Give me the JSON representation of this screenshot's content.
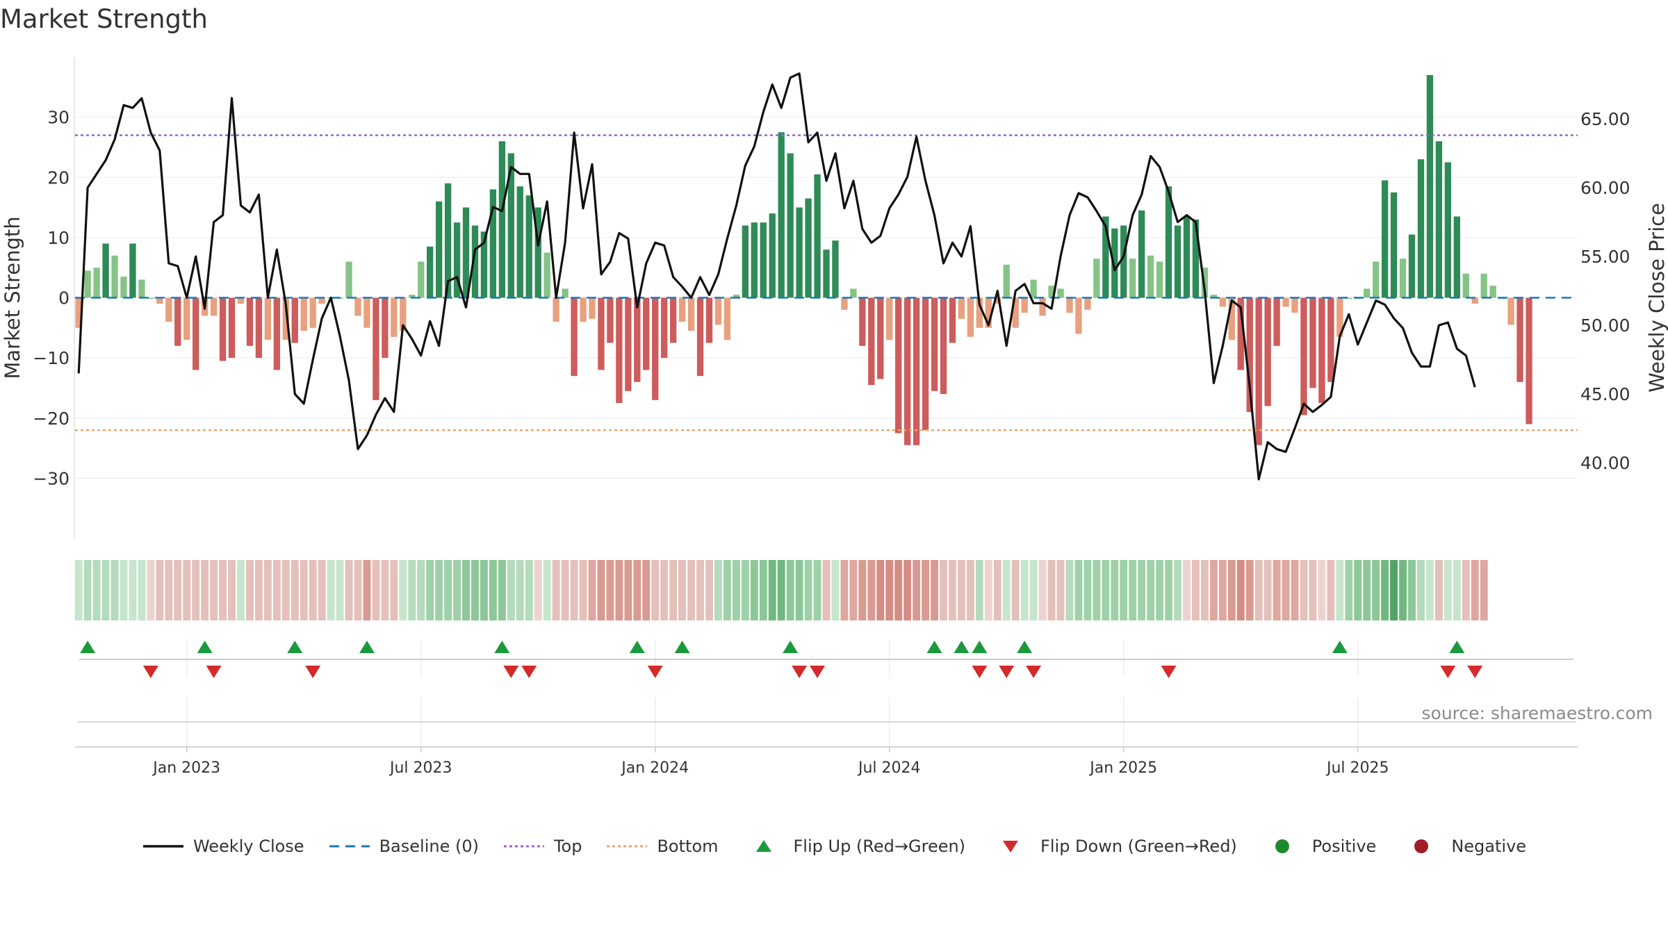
{
  "chart_data": {
    "type": "bar+line",
    "title": "Market Strength",
    "source": "source: sharemaestro.com",
    "y_left": {
      "label": "Market Strength",
      "range": [
        -40,
        40
      ],
      "ticks": [
        30,
        20,
        10,
        0,
        -10,
        -20,
        -30
      ]
    },
    "y_right": {
      "label": "Weekly Close Price",
      "range": [
        34.5,
        69.5
      ],
      "ticks": [
        "65.00",
        "60.00",
        "55.00",
        "50.00",
        "45.00",
        "40.00"
      ]
    },
    "top_threshold": 27,
    "bottom_threshold": -22,
    "x_range": {
      "start_week": -12.4,
      "end_week": 154.4
    },
    "x_ticks": [
      {
        "label": "Jan 2023",
        "week": 0
      },
      {
        "label": "Jul 2023",
        "week": 26
      },
      {
        "label": "Jan 2024",
        "week": 52
      },
      {
        "label": "Jul 2024",
        "week": 78
      },
      {
        "label": "Jan 2025",
        "week": 104
      },
      {
        "label": "Jul 2025",
        "week": 130
      }
    ],
    "start_week": -12,
    "strength": [
      -5,
      4.5,
      5,
      9,
      7,
      3.5,
      9,
      3,
      0,
      -1,
      -4,
      -8,
      -7,
      -12,
      -3,
      -3,
      -10.5,
      -10,
      -1,
      -8,
      -10,
      -7,
      -12,
      -7,
      -7.5,
      -5.5,
      -5,
      -1,
      0,
      0,
      6,
      -3,
      -5,
      -17,
      -10,
      -6.5,
      -5.5,
      0.5,
      6,
      8.5,
      16,
      19,
      12.5,
      15,
      12,
      11,
      18,
      26,
      24,
      18.5,
      17,
      15,
      7.5,
      -4,
      1.5,
      -13,
      -4,
      -3.5,
      -12,
      -7.5,
      -17.5,
      -15.5,
      -14,
      -12,
      -17,
      -10,
      -7.5,
      -4,
      -5.5,
      -13,
      -7.5,
      -4.5,
      -7,
      0.5,
      12,
      12.5,
      12.5,
      14,
      27.5,
      24,
      15,
      16.5,
      20.5,
      8,
      9.5,
      -2,
      1.5,
      -8,
      -14.5,
      -13.5,
      -7,
      -22.5,
      -24.5,
      -24.5,
      -22,
      -15.5,
      -16,
      -7.5,
      -3.5,
      -6.5,
      -5,
      -5,
      -1,
      5.5,
      -5,
      -2.5,
      3,
      -3,
      2,
      1.5,
      -2.5,
      -6,
      -2,
      6.5,
      13.5,
      11.5,
      12,
      6.5,
      14.5,
      7,
      6,
      18.5,
      12,
      13.5,
      13,
      5,
      0.5,
      -1.5,
      -7,
      -12,
      -19,
      -24.5,
      -18,
      -8,
      -1.5,
      -2.5,
      -19.5,
      -15,
      -17.5,
      -14,
      -6.5,
      0,
      0,
      1.5,
      6,
      19.5,
      17.5,
      6.5,
      10.5,
      23,
      37,
      26,
      22.5,
      13.5,
      4,
      -1,
      4,
      2,
      0,
      -4.5,
      -14,
      -21
    ],
    "weekly_close": [
      46.5,
      60,
      61,
      62,
      63.5,
      66,
      65.8,
      66.5,
      64,
      62.7,
      54.5,
      54.3,
      52,
      55,
      51.2,
      57.5,
      58,
      66.5,
      58.7,
      58.2,
      59.5,
      52,
      55.5,
      51.5,
      45,
      44.3,
      47.5,
      50.5,
      52,
      49.2,
      46,
      41,
      42,
      43.5,
      44.7,
      43.7,
      50,
      49,
      47.8,
      50.3,
      48.5,
      53.2,
      53.5,
      51.3,
      55.5,
      56,
      58.6,
      58.3,
      61.5,
      61,
      61,
      55.8,
      59,
      52,
      56,
      64,
      58.5,
      61.7,
      53.7,
      54.6,
      56.7,
      56.3,
      51.3,
      54.5,
      56,
      55.8,
      53.5,
      52.8,
      52,
      53.5,
      52.2,
      53.7,
      56.3,
      58.7,
      61.6,
      63,
      65.5,
      67.5,
      65.8,
      68,
      68.3,
      63.3,
      64,
      60.5,
      62.5,
      58.5,
      60.5,
      57,
      56,
      56.5,
      58.5,
      59.5,
      60.8,
      63.7,
      60.5,
      58,
      54.5,
      56,
      55,
      57.2,
      51.5,
      50,
      52.5,
      48.5,
      52.5,
      53,
      51.6,
      51.6,
      51.2,
      55,
      58,
      59.6,
      59.3,
      58.3,
      57.2,
      54,
      55,
      58,
      59.5,
      62.3,
      61.5,
      59.7,
      57.5,
      58,
      57.5,
      52.5,
      45.8,
      48.5,
      51.8,
      51.3,
      45.5,
      38.8,
      41.5,
      41,
      40.8,
      42.5,
      44.3,
      43.7,
      44.2,
      44.8,
      49.2,
      50.8,
      48.6,
      50.2,
      51.8,
      51.5,
      50.5,
      49.8,
      48,
      47,
      47,
      50,
      50.2,
      48.3,
      47.8,
      45.5
    ],
    "heat_strip": [
      "#c7e4cc",
      "#b4dbbb",
      "#b4dbbb",
      "#b4dbbb",
      "#b4dbbb",
      "#c7e4cc",
      "#c7e4cc",
      "#c7e4cc",
      "#ecd3d0",
      "#e4c0ba",
      "#e4c0ba",
      "#e4c0ba",
      "#e4c0ba",
      "#e4c0ba",
      "#e4c0ba",
      "#e4c0ba",
      "#e4c0ba",
      "#e4c0ba",
      "#c7e4cc",
      "#e4c0ba",
      "#e4c0ba",
      "#e4c0ba",
      "#e4c0ba",
      "#e4c0ba",
      "#e4c0ba",
      "#e4c0ba",
      "#e4c0ba",
      "#e4c0ba",
      "#c7e4cc",
      "#c7e4cc",
      "#e4c0ba",
      "#e4c0ba",
      "#d99a91",
      "#e4c0ba",
      "#e4c0ba",
      "#e4c0ba",
      "#c7e4cc",
      "#b4dbbb",
      "#b4dbbb",
      "#9fd1a8",
      "#9fd1a8",
      "#9fd1a8",
      "#9fd1a8",
      "#8cc798",
      "#8cc798",
      "#8cc798",
      "#8cc798",
      "#8cc798",
      "#b4dbbb",
      "#b4dbbb",
      "#b4dbbb",
      "#ecd3d0",
      "#c7e4cc",
      "#e4c0ba",
      "#e4c0ba",
      "#e4c0ba",
      "#e4c0ba",
      "#dea79f",
      "#d99a91",
      "#d99a91",
      "#d99a91",
      "#d99a91",
      "#d99a91",
      "#d99a91",
      "#e4c0ba",
      "#e4c0ba",
      "#e4c0ba",
      "#e4c0ba",
      "#e4c0ba",
      "#e4c0ba",
      "#e4c0ba",
      "#b4dbbb",
      "#9fd1a8",
      "#9fd1a8",
      "#9fd1a8",
      "#8cc798",
      "#8cc798",
      "#6fb880",
      "#6fb880",
      "#8cc798",
      "#8cc798",
      "#9fd1a8",
      "#9fd1a8",
      "#e4c0ba",
      "#c7e4cc",
      "#dea79f",
      "#dea79f",
      "#d99a91",
      "#d99a91",
      "#d48c85",
      "#d48c85",
      "#d48c85",
      "#d48c85",
      "#d99a91",
      "#d99a91",
      "#d99a91",
      "#e4c0ba",
      "#e4c0ba",
      "#e4c0ba",
      "#e4c0ba",
      "#b4dbbb",
      "#ecd3d0",
      "#e4c0ba",
      "#c7e4cc",
      "#e4c0ba",
      "#c7e4cc",
      "#c7e4cc",
      "#ecd3d0",
      "#e4c0ba",
      "#e4c0ba",
      "#b4dbbb",
      "#9fd1a8",
      "#9fd1a8",
      "#9fd1a8",
      "#9fd1a8",
      "#9fd1a8",
      "#9fd1a8",
      "#9fd1a8",
      "#9fd1a8",
      "#9fd1a8",
      "#9fd1a8",
      "#9fd1a8",
      "#b4dbbb",
      "#ecd3d0",
      "#e4c0ba",
      "#e4c0ba",
      "#dea79f",
      "#dea79f",
      "#d99a91",
      "#d48c85",
      "#d99a91",
      "#e4c0ba",
      "#e4c0ba",
      "#dea79f",
      "#dea79f",
      "#dea79f",
      "#e4c0ba",
      "#e4c0ba",
      "#ecd3d0",
      "#e4c0ba",
      "#c7e4cc",
      "#9fd1a8",
      "#8cc798",
      "#8cc798",
      "#8cc798",
      "#6fb880",
      "#4fa464",
      "#6fb880",
      "#8cc798",
      "#b4dbbb",
      "#c7e4cc",
      "#e4c0ba",
      "#c7e4cc",
      "#c7e4cc",
      "#e4c0ba",
      "#dea79f",
      "#dea79f"
    ],
    "flip_up_weeks": [
      -11,
      2,
      12,
      20,
      35,
      50,
      55,
      67,
      83,
      86,
      88,
      93,
      128,
      141
    ],
    "flip_down_weeks": [
      -4,
      3,
      14,
      36,
      38,
      52,
      68,
      70,
      88,
      91,
      94,
      109,
      140,
      143
    ],
    "series_styles": {
      "positive_strong": "#2e8b57",
      "positive_weak": "#86c387",
      "negative_strong": "#cd5c5c",
      "negative_weak": "#e8a07e",
      "close_line": "#111111",
      "baseline": "#1f77b4",
      "top": "#9966cc",
      "bottom": "#e9a56a",
      "flip_up": "#1a9a3c",
      "flip_down": "#d42a2a",
      "positive_dot": "#1e8a2e",
      "negative_dot": "#a11d28"
    },
    "legend": [
      {
        "label": "Weekly Close",
        "kind": "line",
        "color": "#111111"
      },
      {
        "label": "Baseline (0)",
        "kind": "dash",
        "color": "#1f77b4"
      },
      {
        "label": "Top",
        "kind": "dot",
        "color": "#9966cc"
      },
      {
        "label": "Bottom",
        "kind": "dot",
        "color": "#e9a56a"
      },
      {
        "label": "Flip Up (Red→Green)",
        "kind": "tri-up",
        "color": "#1a9a3c"
      },
      {
        "label": "Flip Down (Green→Red)",
        "kind": "tri-down",
        "color": "#d42a2a"
      },
      {
        "label": "Positive",
        "kind": "circle",
        "color": "#1e8a2e"
      },
      {
        "label": "Negative",
        "kind": "circle",
        "color": "#a11d28"
      }
    ]
  }
}
